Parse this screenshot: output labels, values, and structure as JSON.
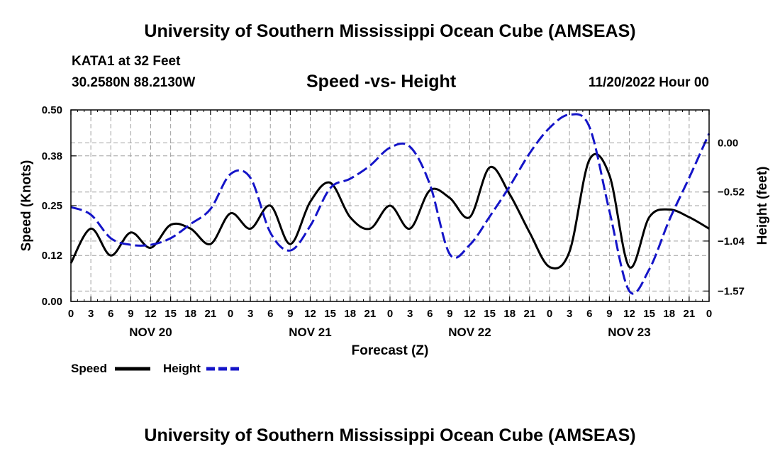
{
  "header": {
    "title": "University of Southern Mississippi Ocean Cube (AMSEAS)",
    "station_name": "KATA1 at 32 Feet",
    "station_coords": "30.2580N  88.2130W",
    "plot_title": "Speed -vs- Height",
    "date_label": "11/20/2022 Hour 00"
  },
  "footer": {
    "title": "University of Southern Mississippi Ocean Cube (AMSEAS)"
  },
  "colors": {
    "speed": "#000000",
    "height": "#1414c8",
    "grid": "#a0a0a0"
  },
  "chart_data": {
    "type": "line",
    "title": "Speed -vs- Height",
    "xlabel": "Forecast (Z)",
    "ylabel": "Speed (Knots)",
    "y2label": "Height (feet)",
    "x_range": [
      0,
      96
    ],
    "x_ticks": [
      0,
      3,
      6,
      9,
      12,
      15,
      18,
      21,
      24,
      27,
      30,
      33,
      36,
      39,
      42,
      45,
      48,
      51,
      54,
      57,
      60,
      63,
      66,
      69,
      72,
      75,
      78,
      81,
      84,
      87,
      90,
      93,
      96
    ],
    "x_tick_labels": [
      "0",
      "3",
      "6",
      "9",
      "12",
      "15",
      "18",
      "21",
      "0",
      "3",
      "6",
      "9",
      "12",
      "15",
      "18",
      "21",
      "0",
      "3",
      "6",
      "9",
      "12",
      "15",
      "18",
      "21",
      "0",
      "3",
      "6",
      "9",
      "12",
      "15",
      "18",
      "21",
      "0"
    ],
    "day_labels": [
      {
        "x": 12,
        "label": "NOV 20"
      },
      {
        "x": 36,
        "label": "NOV 21"
      },
      {
        "x": 60,
        "label": "NOV 22"
      },
      {
        "x": 84,
        "label": "NOV 23"
      }
    ],
    "y_range": [
      0.0,
      0.5
    ],
    "y_ticks": [
      0.0,
      0.12,
      0.25,
      0.38,
      0.5
    ],
    "y_tick_labels": [
      "0.00",
      "0.12",
      "0.25",
      "0.38",
      "0.50"
    ],
    "y2_range": [
      -1.68,
      0.35
    ],
    "y2_ticks": [
      -1.57,
      -1.04,
      -0.52,
      0.0
    ],
    "y2_tick_labels": [
      "−1.57",
      "−1.04",
      "−0.52",
      "0.00"
    ],
    "grid": true,
    "legend": [
      {
        "label": "Speed",
        "series": "speed"
      },
      {
        "label": "Height",
        "series": "height"
      }
    ],
    "legend_position": "bottom-left",
    "series": [
      {
        "name": "Speed",
        "axis": "left",
        "style": "solid",
        "x": [
          0,
          3,
          6,
          9,
          12,
          15,
          18,
          21,
          24,
          27,
          30,
          33,
          36,
          39,
          42,
          45,
          48,
          51,
          54,
          57,
          60,
          63,
          66,
          69,
          72,
          75,
          78,
          81,
          84,
          87,
          90,
          93,
          96
        ],
        "values": [
          0.1,
          0.19,
          0.12,
          0.18,
          0.14,
          0.2,
          0.19,
          0.15,
          0.23,
          0.19,
          0.25,
          0.15,
          0.26,
          0.31,
          0.22,
          0.19,
          0.25,
          0.19,
          0.29,
          0.27,
          0.22,
          0.35,
          0.28,
          0.18,
          0.09,
          0.13,
          0.37,
          0.33,
          0.09,
          0.22,
          0.24,
          0.22,
          0.19
        ]
      },
      {
        "name": "Height",
        "axis": "right",
        "style": "dashed",
        "x": [
          0,
          3,
          6,
          9,
          12,
          15,
          18,
          21,
          24,
          27,
          30,
          33,
          36,
          39,
          42,
          45,
          48,
          51,
          54,
          57,
          60,
          63,
          66,
          69,
          72,
          75,
          78,
          81,
          84,
          87,
          90,
          93,
          96
        ],
        "values": [
          -0.68,
          -0.76,
          -1.01,
          -1.08,
          -1.08,
          -1.01,
          -0.86,
          -0.7,
          -0.33,
          -0.37,
          -0.95,
          -1.14,
          -0.88,
          -0.48,
          -0.38,
          -0.24,
          -0.05,
          -0.04,
          -0.44,
          -1.18,
          -1.08,
          -0.78,
          -0.46,
          -0.11,
          0.16,
          0.3,
          0.17,
          -0.72,
          -1.57,
          -1.34,
          -0.82,
          -0.37,
          0.1
        ]
      }
    ]
  }
}
